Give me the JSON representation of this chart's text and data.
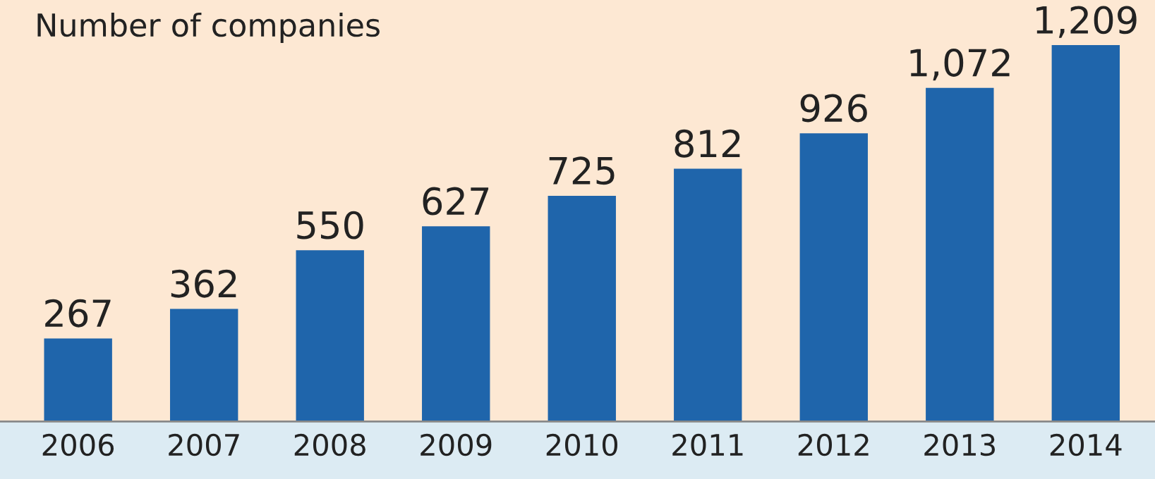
{
  "chart_data": {
    "type": "bar",
    "title": "Number of companies",
    "categories": [
      "2006",
      "2007",
      "2008",
      "2009",
      "2010",
      "2011",
      "2012",
      "2013",
      "2014"
    ],
    "values": [
      267,
      362,
      550,
      627,
      725,
      812,
      926,
      1072,
      1209
    ],
    "value_labels": [
      "267",
      "362",
      "550",
      "627",
      "725",
      "812",
      "926",
      "1,072",
      "1,209"
    ],
    "color": "#1f65ab",
    "tick_labels": "x",
    "grid": false,
    "legend": false
  }
}
